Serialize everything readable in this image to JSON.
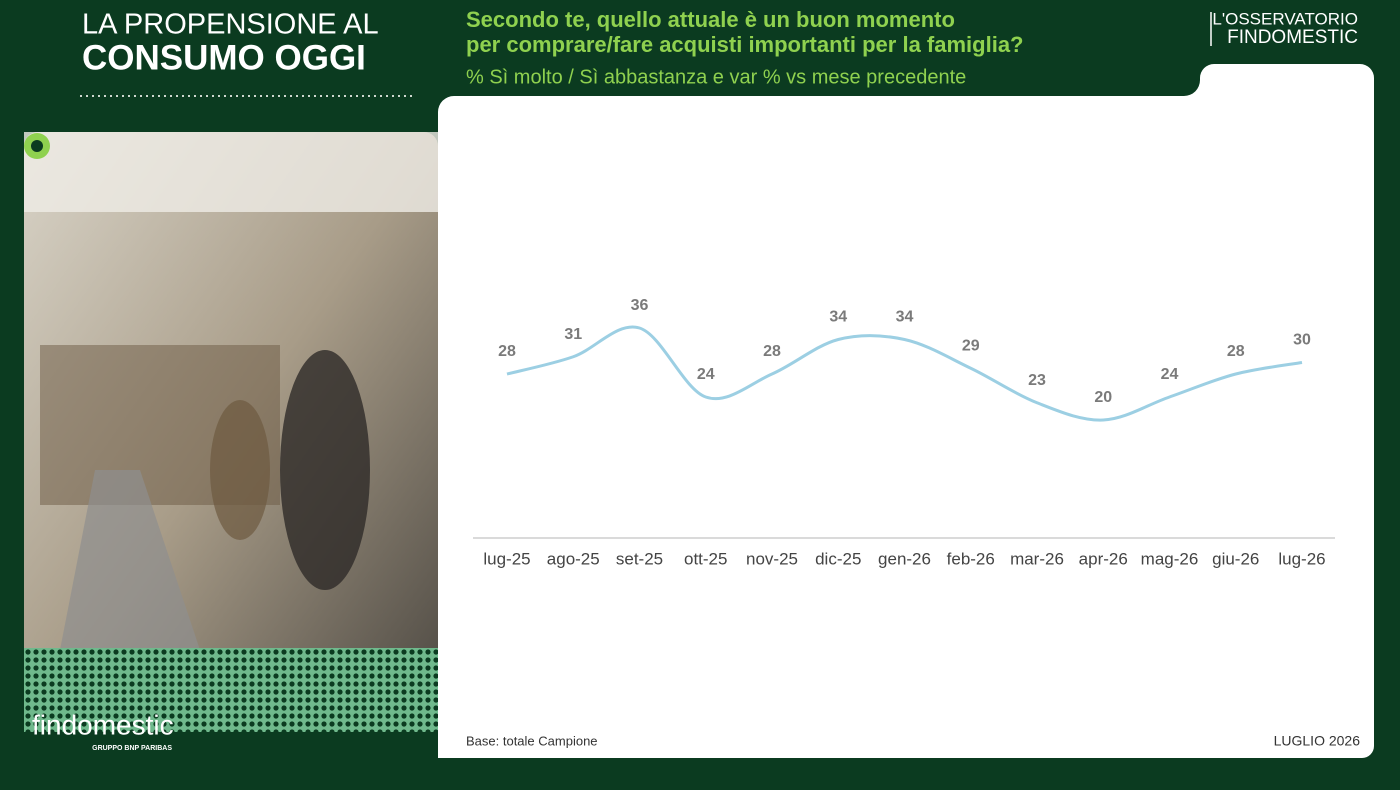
{
  "header": {
    "title_line1": "LA PROPENSIONE AL",
    "title_line2": "CONSUMO OGGI",
    "brand_line1": "L'OSSERVATORIO",
    "brand_line2": "FINDOMESTIC"
  },
  "chart_data": {
    "type": "line",
    "title_line1": "Secondo te, quello attuale è un buon momento",
    "title_line2": "per comprare/fare acquisti importanti per la famiglia?",
    "subtitle": "% Sì molto / Sì abbastanza e var % vs mese precedente",
    "categories": [
      "lug-25",
      "ago-25",
      "set-25",
      "ott-25",
      "nov-25",
      "dic-25",
      "gen-26",
      "feb-26",
      "mar-26",
      "apr-26",
      "mag-26",
      "giu-26",
      "lug-26"
    ],
    "series": [
      {
        "name": "Sì molto / Sì abbastanza",
        "color": "#9ccfe3",
        "values": [
          28,
          31,
          36,
          24,
          28,
          34,
          34,
          29,
          23,
          20,
          24,
          28,
          30
        ]
      }
    ]
  },
  "footer": {
    "base": "Base: totale Campione",
    "date": "LUGLIO 2026",
    "logo": "findomestic",
    "logo_sub": "GRUPPO BNP PARIBAS"
  }
}
